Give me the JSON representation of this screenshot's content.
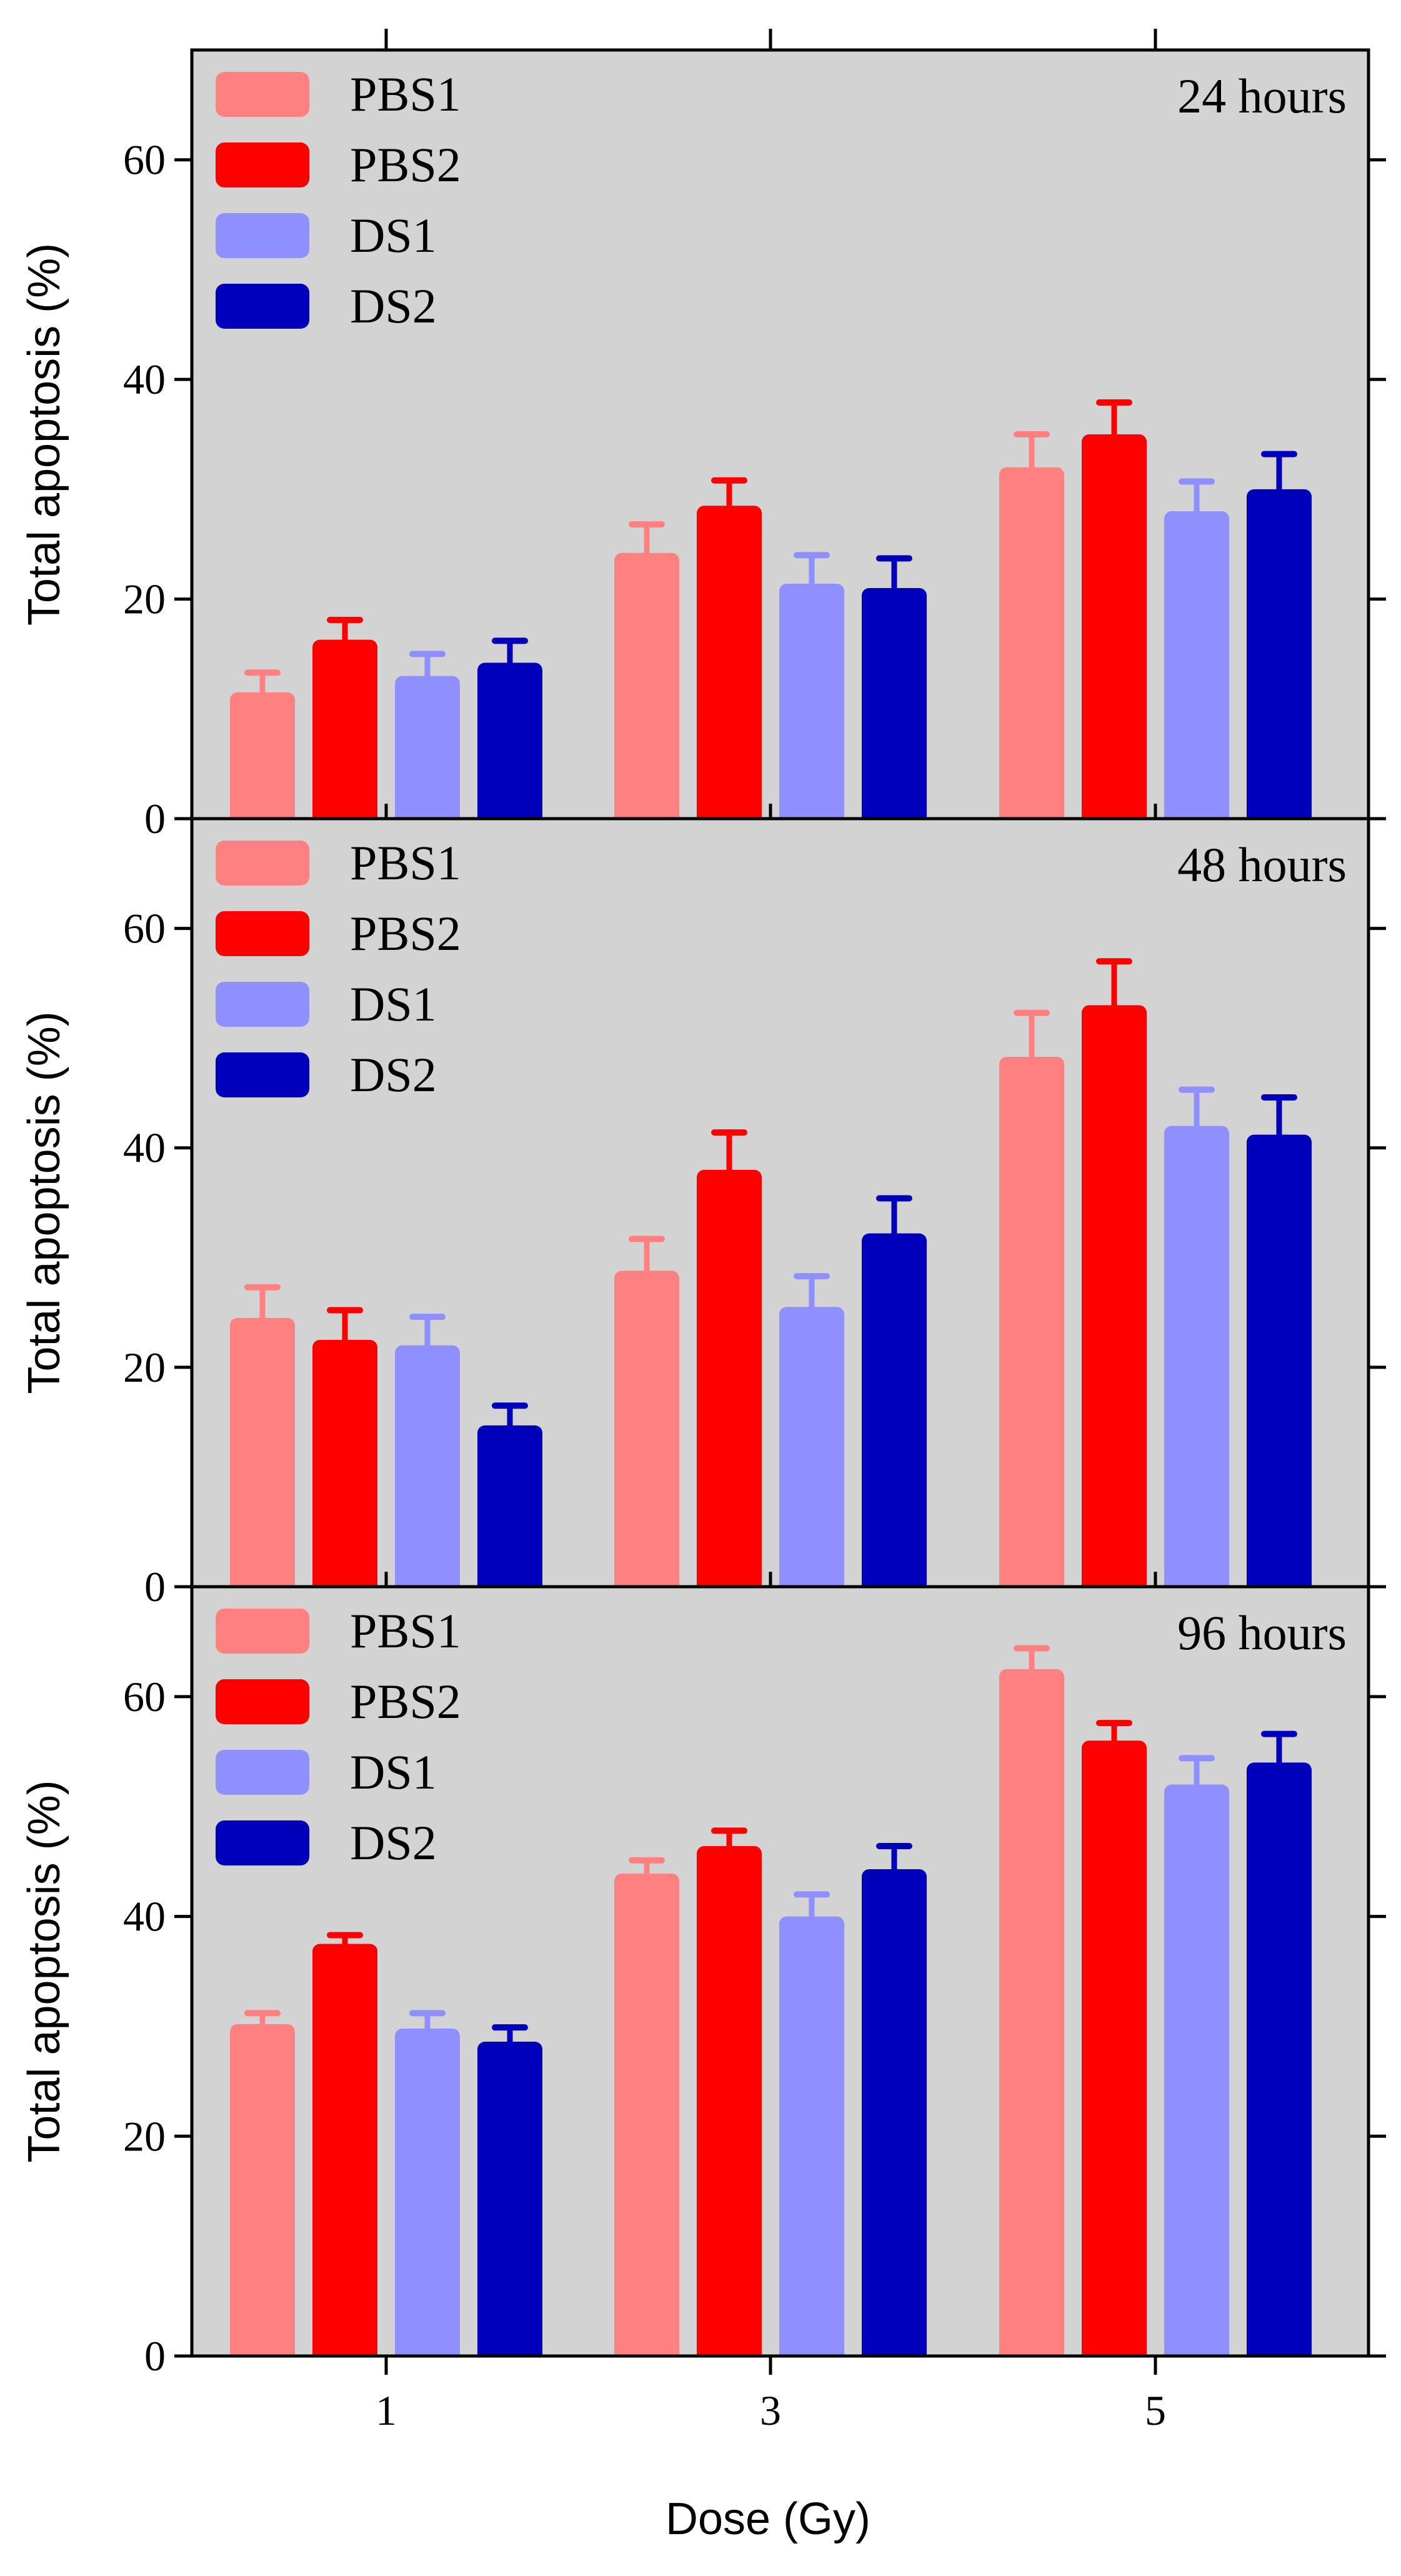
{
  "chart_data": {
    "type": "bar",
    "xlabel": "Dose (Gy)",
    "categories": [
      "1",
      "3",
      "5"
    ],
    "ylim": [
      0,
      70
    ],
    "yticks": [
      0,
      20,
      40,
      60
    ],
    "legend_placement": "top-left",
    "grid": false,
    "colors": {
      "PBS1": "#ff8080",
      "PBS2": "#ff0000",
      "DS1": "#8f8fff",
      "DS2": "#0000bb",
      "plot_background": "#d3d3d3"
    },
    "panels": [
      {
        "label": "24 hours",
        "ylabel": "Total apoptosis (%)",
        "series": [
          {
            "name": "PBS1",
            "values": [
              11.5,
              24.2,
              32.0
            ],
            "errors": [
              1.8,
              2.6,
              3.0
            ]
          },
          {
            "name": "PBS2",
            "values": [
              16.3,
              28.5,
              35.0
            ],
            "errors": [
              1.8,
              2.3,
              2.9
            ]
          },
          {
            "name": "DS1",
            "values": [
              13.0,
              21.4,
              28.0
            ],
            "errors": [
              2.0,
              2.6,
              2.7
            ]
          },
          {
            "name": "DS2",
            "values": [
              14.2,
              21.0,
              30.0
            ],
            "errors": [
              2.0,
              2.7,
              3.2
            ]
          }
        ]
      },
      {
        "label": "48 hours",
        "ylabel": "Total apoptosis (%)",
        "series": [
          {
            "name": "PBS1",
            "values": [
              24.5,
              28.8,
              48.3
            ],
            "errors": [
              2.8,
              2.9,
              4.0
            ]
          },
          {
            "name": "PBS2",
            "values": [
              22.5,
              38.0,
              53.0
            ],
            "errors": [
              2.7,
              3.4,
              4.0
            ]
          },
          {
            "name": "DS1",
            "values": [
              22.0,
              25.5,
              42.0
            ],
            "errors": [
              2.6,
              2.8,
              3.3
            ]
          },
          {
            "name": "DS2",
            "values": [
              14.7,
              32.2,
              41.2
            ],
            "errors": [
              1.8,
              3.2,
              3.4
            ]
          }
        ]
      },
      {
        "label": "96 hours",
        "ylabel": "Total apoptosis (%)",
        "series": [
          {
            "name": "PBS1",
            "values": [
              30.2,
              43.9,
              62.5
            ],
            "errors": [
              1.0,
              1.2,
              1.9
            ]
          },
          {
            "name": "PBS2",
            "values": [
              37.5,
              46.4,
              56.0
            ],
            "errors": [
              0.8,
              1.4,
              1.6
            ]
          },
          {
            "name": "DS1",
            "values": [
              29.8,
              40.0,
              52.0
            ],
            "errors": [
              1.4,
              2.0,
              2.4
            ]
          },
          {
            "name": "DS2",
            "values": [
              28.6,
              44.3,
              54.0
            ],
            "errors": [
              1.3,
              2.1,
              2.6
            ]
          }
        ]
      }
    ]
  }
}
